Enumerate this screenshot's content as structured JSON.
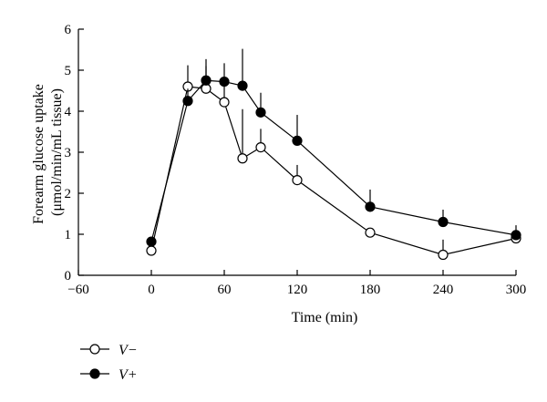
{
  "chart_data": {
    "type": "line",
    "title": "",
    "xlabel": "Time (min)",
    "ylabel_line1": "Forearm glucose uptake",
    "ylabel_line2": "(μmol/min/mL tissue)",
    "xlim": [
      -60,
      300
    ],
    "ylim": [
      0,
      6
    ],
    "xticks": [
      -60,
      0,
      60,
      120,
      180,
      240,
      300
    ],
    "xtick_labels": [
      "−60",
      "0",
      "60",
      "120",
      "180",
      "240",
      "300"
    ],
    "yticks": [
      0,
      1,
      2,
      3,
      4,
      5,
      6
    ],
    "ytick_labels": [
      "0",
      "1",
      "2",
      "3",
      "4",
      "5",
      "6"
    ],
    "grid": false,
    "legend_position": "bottom-left",
    "series": [
      {
        "name": "V−",
        "marker": "open-circle",
        "x": [
          0,
          30,
          45,
          60,
          75,
          90,
          120,
          180,
          240,
          300
        ],
        "y": [
          0.6,
          4.6,
          4.55,
          4.22,
          2.85,
          3.12,
          2.32,
          1.04,
          0.5,
          0.9
        ],
        "err_up": [
          0,
          0.52,
          0.55,
          0.38,
          1.2,
          0.45,
          0.37,
          0,
          0.37,
          0.1
        ]
      },
      {
        "name": "V+",
        "marker": "filled-circle",
        "x": [
          0,
          30,
          45,
          60,
          75,
          90,
          120,
          180,
          240,
          300
        ],
        "y": [
          0.82,
          4.25,
          4.75,
          4.72,
          4.62,
          3.97,
          3.28,
          1.67,
          1.3,
          0.98
        ],
        "err_up": [
          0.12,
          0.3,
          0.52,
          0.45,
          0.9,
          0.48,
          0.63,
          0.42,
          0.3,
          0.24
        ]
      }
    ]
  }
}
